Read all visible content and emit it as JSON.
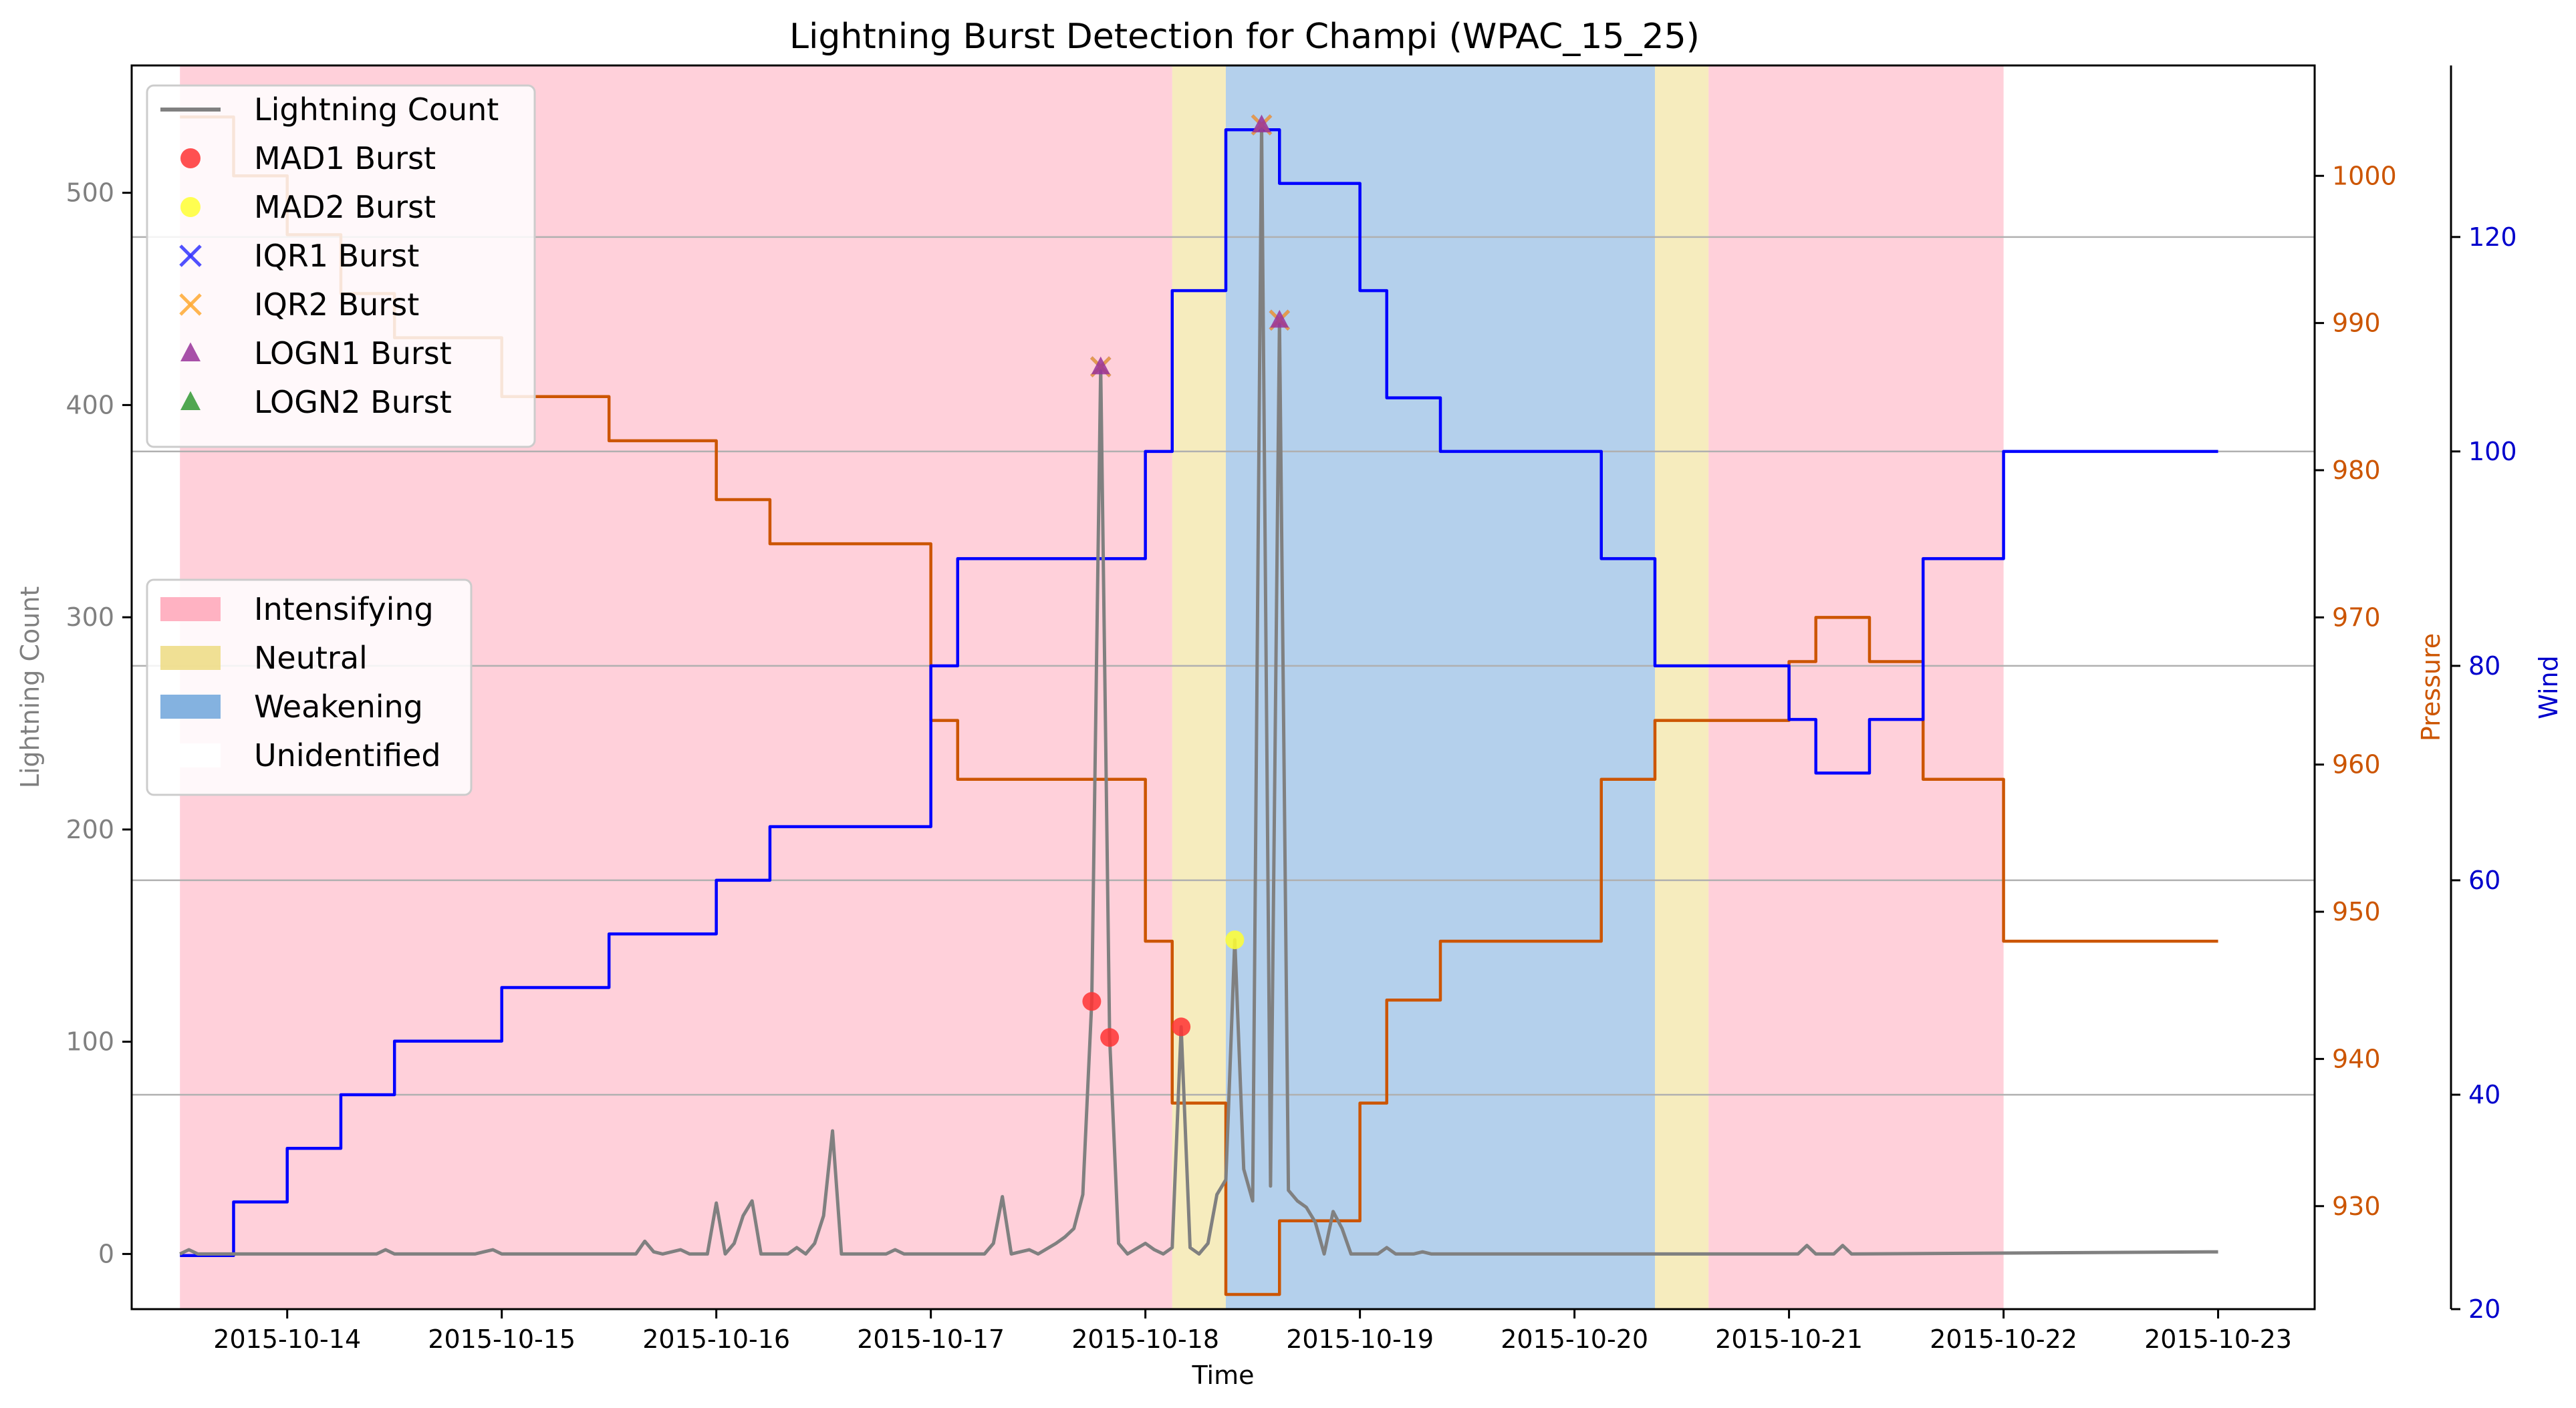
{
  "chart_data": {
    "type": "line",
    "title": "Lightning Burst Detection for Champi (WPAC_15_25)",
    "xlabel": "Time",
    "ylabel_left": "Lightning Count",
    "ylabel_right_pressure": "Pressure",
    "ylabel_right_wind": "Wind",
    "x_ticks": [
      "2015-10-14",
      "2015-10-15",
      "2015-10-16",
      "2015-10-17",
      "2015-10-18",
      "2015-10-19",
      "2015-10-20",
      "2015-10-21",
      "2015-10-22",
      "2015-10-23"
    ],
    "xlim": [
      "2015-10-13 06:36",
      "2015-10-23 10:48"
    ],
    "y_left": {
      "ticks": [
        0,
        100,
        200,
        300,
        400,
        500
      ],
      "ylim": [
        -26,
        560
      ]
    },
    "y_pressure": {
      "ticks": [
        930,
        940,
        950,
        960,
        970,
        980,
        990,
        1000
      ],
      "ylim": [
        923,
        1007.5
      ],
      "color": "#cc5500"
    },
    "y_wind": {
      "ticks": [
        20,
        40,
        60,
        80,
        100,
        120
      ],
      "ylim": [
        20,
        136
      ],
      "color": "#0000cc"
    },
    "grid": "y-right-major",
    "legend_lines": {
      "placement": "top-left",
      "entries": [
        {
          "label": "Lightning Count",
          "marker": "line",
          "color": "#808080"
        },
        {
          "label": "MAD1 Burst",
          "marker": "circle",
          "color": "#ff3333"
        },
        {
          "label": "MAD2 Burst",
          "marker": "circle",
          "color": "#ffff33"
        },
        {
          "label": "IQR1 Burst",
          "marker": "x",
          "color": "#3333ff"
        },
        {
          "label": "IQR2 Burst",
          "marker": "x",
          "color": "#ffaa33"
        },
        {
          "label": "LOGN1 Burst",
          "marker": "triangle",
          "color": "#993399"
        },
        {
          "label": "LOGN2 Burst",
          "marker": "triangle",
          "color": "#339933"
        }
      ]
    },
    "legend_phases": {
      "placement": "center-left",
      "entries": [
        {
          "label": "Intensifying",
          "color": "#ffaabb"
        },
        {
          "label": "Neutral",
          "color": "#eedd88"
        },
        {
          "label": "Weakening",
          "color": "#77aadd"
        },
        {
          "label": "Unidentified",
          "color": "#ffffff"
        }
      ]
    },
    "phases": [
      {
        "phase": "Intensifying",
        "start": "2015-10-13 12:00",
        "end": "2015-10-18 03:00"
      },
      {
        "phase": "Neutral",
        "start": "2015-10-18 03:00",
        "end": "2015-10-18 09:00"
      },
      {
        "phase": "Weakening",
        "start": "2015-10-18 09:00",
        "end": "2015-10-20 09:00"
      },
      {
        "phase": "Neutral",
        "start": "2015-10-20 09:00",
        "end": "2015-10-20 15:00"
      },
      {
        "phase": "Intensifying",
        "start": "2015-10-20 15:00",
        "end": "2015-10-22 00:00"
      }
    ],
    "series": [
      {
        "name": "Pressure",
        "axis": "pressure",
        "color": "#cc5500",
        "step": true,
        "points": [
          [
            "2015-10-13 12:00",
            1004
          ],
          [
            "2015-10-13 18:00",
            1000
          ],
          [
            "2015-10-14 00:00",
            996
          ],
          [
            "2015-10-14 06:00",
            992
          ],
          [
            "2015-10-14 12:00",
            989
          ],
          [
            "2015-10-15 00:00",
            985
          ],
          [
            "2015-10-15 12:00",
            982
          ],
          [
            "2015-10-16 00:00",
            978
          ],
          [
            "2015-10-16 06:00",
            975
          ],
          [
            "2015-10-17 00:00",
            963
          ],
          [
            "2015-10-17 03:00",
            959
          ],
          [
            "2015-10-18 00:00",
            948
          ],
          [
            "2015-10-18 03:00",
            937
          ],
          [
            "2015-10-18 09:00",
            924
          ],
          [
            "2015-10-18 15:00",
            929
          ],
          [
            "2015-10-19 00:00",
            937
          ],
          [
            "2015-10-19 03:00",
            944
          ],
          [
            "2015-10-19 09:00",
            948
          ],
          [
            "2015-10-20 03:00",
            959
          ],
          [
            "2015-10-20 09:00",
            963
          ],
          [
            "2015-10-21 00:00",
            967
          ],
          [
            "2015-10-21 03:00",
            970
          ],
          [
            "2015-10-21 09:00",
            967
          ],
          [
            "2015-10-21 15:00",
            959
          ],
          [
            "2015-10-22 00:00",
            948
          ],
          [
            "2015-10-23 00:00",
            948
          ]
        ]
      },
      {
        "name": "Wind",
        "axis": "wind",
        "color": "#0000ff",
        "step": true,
        "points": [
          [
            "2015-10-13 12:00",
            25
          ],
          [
            "2015-10-13 18:00",
            30
          ],
          [
            "2015-10-14 00:00",
            35
          ],
          [
            "2015-10-14 06:00",
            40
          ],
          [
            "2015-10-14 12:00",
            45
          ],
          [
            "2015-10-15 00:00",
            50
          ],
          [
            "2015-10-15 12:00",
            55
          ],
          [
            "2015-10-16 00:00",
            60
          ],
          [
            "2015-10-16 06:00",
            65
          ],
          [
            "2015-10-17 00:00",
            80
          ],
          [
            "2015-10-17 03:00",
            90
          ],
          [
            "2015-10-18 00:00",
            100
          ],
          [
            "2015-10-18 03:00",
            115
          ],
          [
            "2015-10-18 09:00",
            130
          ],
          [
            "2015-10-18 15:00",
            125
          ],
          [
            "2015-10-19 00:00",
            115
          ],
          [
            "2015-10-19 03:00",
            105
          ],
          [
            "2015-10-19 09:00",
            100
          ],
          [
            "2015-10-20 03:00",
            90
          ],
          [
            "2015-10-20 09:00",
            80
          ],
          [
            "2015-10-21 00:00",
            75
          ],
          [
            "2015-10-21 03:00",
            70
          ],
          [
            "2015-10-21 09:00",
            75
          ],
          [
            "2015-10-21 15:00",
            90
          ],
          [
            "2015-10-22 00:00",
            100
          ],
          [
            "2015-10-23 00:00",
            100
          ]
        ]
      },
      {
        "name": "Lightning Count",
        "axis": "left",
        "color": "#808080",
        "points": [
          [
            "2015-10-13 12:00",
            0
          ],
          [
            "2015-10-13 13:00",
            2
          ],
          [
            "2015-10-13 14:00",
            0
          ],
          [
            "2015-10-14 10:00",
            0
          ],
          [
            "2015-10-14 11:00",
            2
          ],
          [
            "2015-10-14 12:00",
            0
          ],
          [
            "2015-10-14 21:00",
            0
          ],
          [
            "2015-10-14 22:00",
            1
          ],
          [
            "2015-10-14 23:00",
            2
          ],
          [
            "2015-10-15 00:00",
            0
          ],
          [
            "2015-10-15 15:00",
            0
          ],
          [
            "2015-10-15 16:00",
            6
          ],
          [
            "2015-10-15 17:00",
            1
          ],
          [
            "2015-10-15 18:00",
            0
          ],
          [
            "2015-10-15 20:00",
            2
          ],
          [
            "2015-10-15 21:00",
            0
          ],
          [
            "2015-10-15 23:00",
            0
          ],
          [
            "2015-10-16 00:00",
            24
          ],
          [
            "2015-10-16 01:00",
            0
          ],
          [
            "2015-10-16 02:00",
            5
          ],
          [
            "2015-10-16 03:00",
            18
          ],
          [
            "2015-10-16 04:00",
            25
          ],
          [
            "2015-10-16 05:00",
            0
          ],
          [
            "2015-10-16 08:00",
            0
          ],
          [
            "2015-10-16 09:00",
            3
          ],
          [
            "2015-10-16 10:00",
            0
          ],
          [
            "2015-10-16 11:00",
            5
          ],
          [
            "2015-10-16 12:00",
            18
          ],
          [
            "2015-10-16 13:00",
            58
          ],
          [
            "2015-10-16 14:00",
            0
          ],
          [
            "2015-10-16 19:00",
            0
          ],
          [
            "2015-10-16 20:00",
            2
          ],
          [
            "2015-10-16 21:00",
            0
          ],
          [
            "2015-10-17 06:00",
            0
          ],
          [
            "2015-10-17 07:00",
            5
          ],
          [
            "2015-10-17 08:00",
            27
          ],
          [
            "2015-10-17 09:00",
            0
          ],
          [
            "2015-10-17 11:00",
            2
          ],
          [
            "2015-10-17 12:00",
            0
          ],
          [
            "2015-10-17 14:00",
            5
          ],
          [
            "2015-10-17 15:00",
            8
          ],
          [
            "2015-10-17 16:00",
            12
          ],
          [
            "2015-10-17 17:00",
            28
          ],
          [
            "2015-10-17 18:00",
            119
          ],
          [
            "2015-10-17 19:00",
            418
          ],
          [
            "2015-10-17 20:00",
            102
          ],
          [
            "2015-10-17 21:00",
            5
          ],
          [
            "2015-10-17 22:00",
            0
          ],
          [
            "2015-10-18 00:00",
            5
          ],
          [
            "2015-10-18 01:00",
            2
          ],
          [
            "2015-10-18 02:00",
            0
          ],
          [
            "2015-10-18 03:00",
            3
          ],
          [
            "2015-10-18 04:00",
            107
          ],
          [
            "2015-10-18 05:00",
            3
          ],
          [
            "2015-10-18 06:00",
            0
          ],
          [
            "2015-10-18 07:00",
            5
          ],
          [
            "2015-10-18 08:00",
            28
          ],
          [
            "2015-10-18 09:00",
            35
          ],
          [
            "2015-10-18 10:00",
            148
          ],
          [
            "2015-10-18 11:00",
            40
          ],
          [
            "2015-10-18 12:00",
            25
          ],
          [
            "2015-10-18 13:00",
            532
          ],
          [
            "2015-10-18 14:00",
            32
          ],
          [
            "2015-10-18 15:00",
            440
          ],
          [
            "2015-10-18 16:00",
            30
          ],
          [
            "2015-10-18 17:00",
            25
          ],
          [
            "2015-10-18 18:00",
            22
          ],
          [
            "2015-10-18 19:00",
            15
          ],
          [
            "2015-10-18 20:00",
            0
          ],
          [
            "2015-10-18 21:00",
            20
          ],
          [
            "2015-10-18 22:00",
            12
          ],
          [
            "2015-10-18 23:00",
            0
          ],
          [
            "2015-10-18 02:00",
            0
          ],
          [
            "2015-10-19 02:00",
            0
          ],
          [
            "2015-10-19 03:00",
            3
          ],
          [
            "2015-10-19 04:00",
            0
          ],
          [
            "2015-10-19 06:00",
            0
          ],
          [
            "2015-10-19 07:00",
            1
          ],
          [
            "2015-10-19 08:00",
            0
          ],
          [
            "2015-10-21 01:00",
            0
          ],
          [
            "2015-10-21 02:00",
            4
          ],
          [
            "2015-10-21 03:00",
            0
          ],
          [
            "2015-10-21 05:00",
            0
          ],
          [
            "2015-10-21 06:00",
            4
          ],
          [
            "2015-10-21 07:00",
            0
          ],
          [
            "2015-10-23 00:00",
            1
          ]
        ]
      }
    ],
    "bursts": [
      {
        "type": "MAD1 Burst",
        "marker": "circle",
        "color": "#ff3333",
        "points": [
          [
            "2015-10-17 18:00",
            119
          ],
          [
            "2015-10-17 20:00",
            102
          ],
          [
            "2015-10-18 04:00",
            107
          ]
        ]
      },
      {
        "type": "MAD2 Burst",
        "marker": "circle",
        "color": "#ffff33",
        "points": [
          [
            "2015-10-18 10:00",
            148
          ]
        ]
      },
      {
        "type": "IQR1 Burst",
        "marker": "x",
        "color": "#3333ff",
        "points": [
          [
            "2015-10-17 19:00",
            418
          ],
          [
            "2015-10-18 13:00",
            532
          ],
          [
            "2015-10-18 15:00",
            440
          ]
        ]
      },
      {
        "type": "IQR2 Burst",
        "marker": "x",
        "color": "#ffaa33",
        "points": [
          [
            "2015-10-17 19:00",
            418
          ],
          [
            "2015-10-18 13:00",
            532
          ],
          [
            "2015-10-18 15:00",
            440
          ]
        ]
      },
      {
        "type": "LOGN1 Burst",
        "marker": "triangle",
        "color": "#993399",
        "points": [
          [
            "2015-10-17 19:00",
            418
          ],
          [
            "2015-10-18 13:00",
            532
          ],
          [
            "2015-10-18 15:00",
            440
          ]
        ]
      },
      {
        "type": "LOGN2 Burst",
        "marker": "triangle",
        "color": "#339933",
        "points": []
      }
    ]
  }
}
